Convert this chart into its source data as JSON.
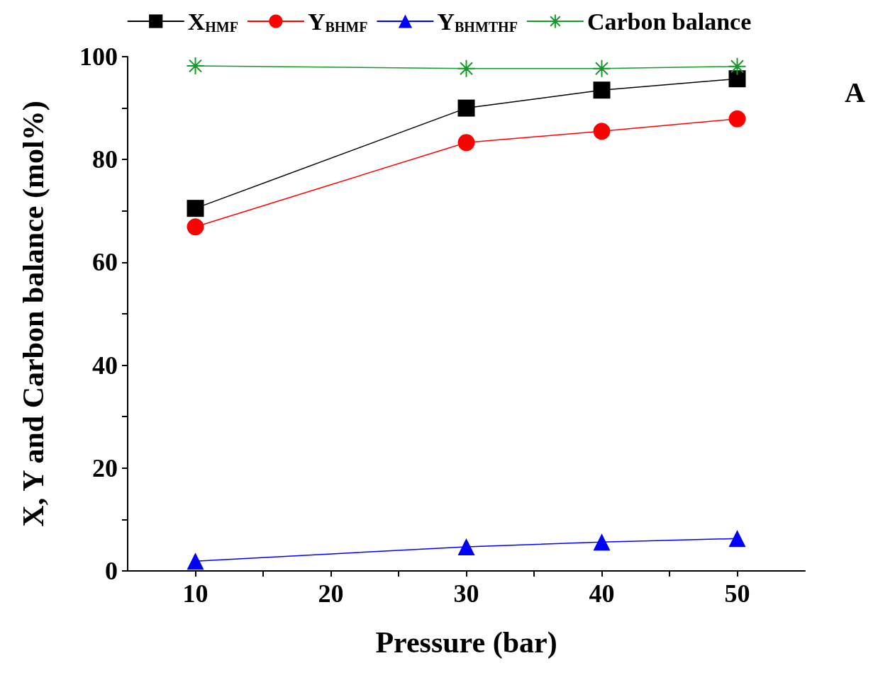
{
  "chart_data": {
    "type": "line",
    "xlabel": "Pressure (bar)",
    "ylabel": "X, Y and Carbon balance (mol%)",
    "x": [
      10,
      30,
      40,
      50
    ],
    "series": [
      {
        "name": "X$_{HMF}$",
        "color": "#000000",
        "marker": "square",
        "values": [
          70.5,
          90.0,
          93.5,
          95.7
        ]
      },
      {
        "name": "Y$_{BHMF}$",
        "color": "#ff0000",
        "marker": "circle",
        "values": [
          66.9,
          83.3,
          85.5,
          87.9
        ]
      },
      {
        "name": "Y$_{BHMTHF}$",
        "color": "#0000ff",
        "marker": "triangle",
        "values": [
          1.9,
          4.7,
          5.6,
          6.3
        ]
      },
      {
        "name": "Carbon balance",
        "color": "#159a2a",
        "marker": "cross",
        "values": [
          98.2,
          97.7,
          97.7,
          98.1
        ]
      }
    ],
    "xlim": [
      5,
      55
    ],
    "xticks": [
      10,
      {
        "value": 15,
        "label": null
      },
      20,
      {
        "value": 25,
        "label": null
      },
      30,
      {
        "value": 35,
        "label": null
      },
      40,
      {
        "value": 45,
        "label": null
      },
      50
    ],
    "ylim": [
      0,
      100
    ],
    "yticks": [
      0,
      {
        "value": 10,
        "label": null
      },
      20,
      {
        "value": 30,
        "label": null
      },
      40,
      {
        "value": 50,
        "label": null
      },
      60,
      {
        "value": 70,
        "label": null
      },
      80,
      {
        "value": 90,
        "label": null
      },
      100
    ],
    "annotations": [
      "A"
    ],
    "legend": "top",
    "grid": false,
    "line_style": "solid"
  }
}
